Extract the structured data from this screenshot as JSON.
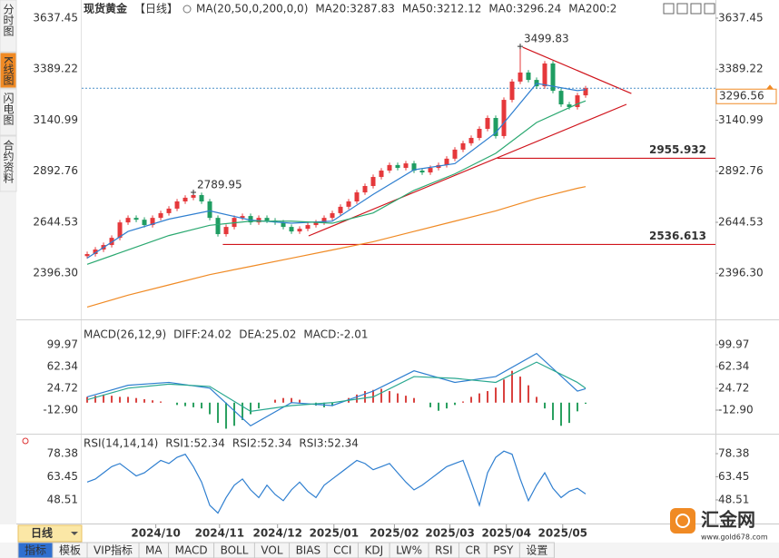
{
  "chart_data": [
    {
      "type": "candlestick",
      "title": "现货黄金",
      "period": "【日线】",
      "indicator": "MA(20,50,0,200,0,0)",
      "up_color": "#e5383b",
      "down_color": "#1f9d62",
      "xlim": [
        -0.67,
        76.89
      ],
      "ylim": [
        2203.2,
        3690.4
      ],
      "yticks": [
        3637.45,
        3389.22,
        3140.99,
        2892.76,
        2644.53,
        {
          "value": 2396.3,
          "label": "2396.30"
        }
      ],
      "open": [
        2480,
        2490,
        2512,
        2534,
        2569,
        2644,
        2666,
        2657,
        2631,
        2666,
        2689,
        2711,
        2746,
        2764,
        2777,
        2746,
        2666,
        2587,
        2622,
        2666,
        2675,
        2644,
        2666,
        2653,
        2644,
        2622,
        2600,
        2613,
        2631,
        2644,
        2666,
        2689,
        2720,
        2746,
        2790,
        2821,
        2865,
        2896,
        2923,
        2909,
        2931,
        2896,
        2887,
        2909,
        2923,
        2954,
        2998,
        3029,
        3055,
        3099,
        3152,
        3064,
        3240,
        3329,
        3373,
        3337,
        3306,
        3417,
        3284,
        3218,
        3205,
        3262
      ],
      "high": [
        2502,
        2524,
        2546,
        2581,
        2656,
        2678,
        2678,
        2669,
        2678,
        2701,
        2723,
        2758,
        2776,
        2789.95,
        2789,
        2758,
        2678,
        2634,
        2678,
        2687,
        2687,
        2678,
        2678,
        2665,
        2656,
        2634,
        2625,
        2643,
        2656,
        2678,
        2701,
        2732,
        2758,
        2802,
        2833,
        2877,
        2908,
        2935,
        2935,
        2943,
        2943,
        2908,
        2921,
        2935,
        2966,
        3010,
        3041,
        3067,
        3111,
        3164,
        3164,
        3252,
        3341,
        3499.83,
        3385,
        3349,
        3429,
        3429,
        3296,
        3230,
        3274,
        3308
      ],
      "low": [
        2468,
        2478,
        2500,
        2522,
        2557,
        2632,
        2645,
        2619,
        2619,
        2654,
        2677,
        2699,
        2734,
        2752,
        2734,
        2654,
        2575,
        2575,
        2610,
        2654,
        2632,
        2632,
        2641,
        2632,
        2610,
        2588,
        2588,
        2601,
        2619,
        2632,
        2654,
        2677,
        2708,
        2734,
        2778,
        2809,
        2853,
        2884,
        2897,
        2897,
        2884,
        2875,
        2875,
        2897,
        2911,
        2942,
        2986,
        3017,
        3043,
        3087,
        3052,
        3052,
        3228,
        3317,
        3325,
        3294,
        3294,
        3272,
        3206,
        3193,
        3193,
        3250
      ],
      "close": [
        2490,
        2512,
        2534,
        2569,
        2644,
        2666,
        2657,
        2631,
        2666,
        2689,
        2711,
        2746,
        2764,
        2777,
        2746,
        2666,
        2587,
        2622,
        2666,
        2675,
        2644,
        2666,
        2653,
        2644,
        2622,
        2600,
        2613,
        2631,
        2644,
        2666,
        2689,
        2720,
        2746,
        2790,
        2821,
        2865,
        2896,
        2923,
        2909,
        2931,
        2896,
        2887,
        2909,
        2923,
        2954,
        2998,
        3029,
        3055,
        3099,
        3152,
        3064,
        3240,
        3329,
        3373,
        3337,
        3306,
        3417,
        3284,
        3218,
        3205,
        3262,
        3296.56
      ],
      "series": [
        {
          "name": "MA20:3287.83",
          "color": "#2f7fd0",
          "x": [
            0,
            5,
            10,
            15,
            20,
            25,
            30,
            35,
            40,
            45,
            50,
            55,
            60,
            61
          ],
          "values": [
            2470,
            2600,
            2660,
            2700,
            2655,
            2640,
            2650,
            2780,
            2900,
            2930,
            3080,
            3320,
            3285,
            3290
          ]
        },
        {
          "name": "MA50:3212.12",
          "color": "#2aa870",
          "x": [
            0,
            5,
            10,
            15,
            20,
            25,
            30,
            35,
            40,
            45,
            50,
            55,
            60,
            61
          ],
          "values": [
            2440,
            2510,
            2580,
            2630,
            2650,
            2650,
            2640,
            2690,
            2800,
            2880,
            2980,
            3130,
            3220,
            3235
          ]
        },
        {
          "name": "MA0:3296.24",
          "color": "#3aa0e0"
        },
        {
          "name": "MA200:2",
          "color": "#f08a24",
          "x": [
            0,
            5,
            10,
            15,
            20,
            25,
            30,
            35,
            40,
            45,
            50,
            55,
            60,
            61
          ],
          "values": [
            2232,
            2290,
            2340,
            2390,
            2430,
            2470,
            2510,
            2550,
            2600,
            2650,
            2700,
            2760,
            2810,
            2818
          ]
        }
      ],
      "high_labels": [
        {
          "x": 53,
          "value": 3499.83
        },
        {
          "x": 13,
          "value": 2789.95
        }
      ],
      "levels": [
        {
          "x_start": 50.2,
          "value": 2955.932
        },
        {
          "x_start": 16.6,
          "value": 2536.613
        }
      ],
      "trendlines": [
        {
          "x": [
            27.1,
            66
          ],
          "y": [
            2578.3,
            3218.2
          ]
        },
        {
          "x": [
            53.3,
            66.6
          ],
          "y": [
            3496,
            3271
          ]
        }
      ],
      "last_price": 3296.56
    },
    {
      "type": "macd",
      "title": "MACD(26,12,9)",
      "xlim": [
        -0.67,
        76.89
      ],
      "ylim": [
        -50.5,
        128.2
      ],
      "yticks": [
        99.97,
        62.34,
        24.72,
        {
          "value": -12.9,
          "label": "-12.90"
        }
      ],
      "series": [
        {
          "name": "DIFF:24.02",
          "color": "#2f7fd0",
          "x": [
            0,
            5,
            10,
            15,
            20,
            25,
            30,
            35,
            40,
            45,
            50,
            55,
            60,
            61
          ],
          "values": [
            10,
            30,
            35,
            25,
            -40,
            0,
            -5,
            20,
            55,
            35,
            45,
            85,
            20,
            24.02
          ]
        },
        {
          "name": "DEA:25.02",
          "color": "#2aa890",
          "x": [
            0,
            5,
            10,
            15,
            20,
            25,
            30,
            35,
            40,
            45,
            50,
            55,
            60,
            61
          ],
          "values": [
            5,
            25,
            32,
            28,
            -15,
            -5,
            0,
            10,
            45,
            42,
            35,
            70,
            35,
            25.02
          ]
        }
      ],
      "histogram": {
        "name": "MACD:-2.01",
        "color": "#3a8fd8",
        "up_color": "#d9423f",
        "down_color": "#2aa060",
        "values": [
          10,
          12,
          14,
          12,
          10,
          10,
          8,
          6,
          4,
          2,
          0,
          -4,
          -6,
          -8,
          -10,
          -20,
          -35,
          -45,
          -40,
          -30,
          -20,
          -10,
          0,
          5,
          8,
          8,
          5,
          0,
          -5,
          -8,
          -6,
          0,
          8,
          14,
          20,
          22,
          24,
          20,
          16,
          12,
          8,
          0,
          -8,
          -14,
          -10,
          -4,
          2,
          10,
          16,
          20,
          26,
          40,
          55,
          45,
          30,
          10,
          -10,
          -30,
          -40,
          -35,
          -15,
          -2.01
        ]
      }
    },
    {
      "type": "line",
      "title": "RSI(14,14,14)",
      "xlim": [
        -0.67,
        76.89
      ],
      "ylim": [
        35,
        87.75
      ],
      "yticks": [
        78.38,
        63.45,
        48.51
      ],
      "xticks": [
        {
          "value": 8.4,
          "label": "2024/10"
        },
        {
          "value": 16.2,
          "label": "2024/11"
        },
        {
          "value": 23.3,
          "label": "2024/12"
        },
        {
          "value": 30.2,
          "label": "2025/01"
        },
        {
          "value": 37.6,
          "label": "2025/02"
        },
        {
          "value": 44.4,
          "label": "2025/03"
        },
        {
          "value": 51.3,
          "label": "2025/04"
        },
        {
          "value": 58.2,
          "label": "2025/05"
        }
      ],
      "series": [
        {
          "name": "RSI1:52.34",
          "color": "#2f7fd0",
          "values": [
            60,
            62,
            66,
            70,
            72,
            68,
            64,
            66,
            70,
            74,
            72,
            76,
            78,
            70,
            60,
            45,
            40,
            50,
            58,
            62,
            55,
            50,
            58,
            52,
            48,
            55,
            60,
            54,
            50,
            58,
            62,
            66,
            70,
            74,
            72,
            68,
            70,
            72,
            66,
            60,
            55,
            58,
            62,
            66,
            70,
            72,
            74,
            60,
            45,
            66,
            76,
            80,
            78,
            62,
            48,
            58,
            66,
            56,
            50,
            54,
            56,
            52.34
          ]
        },
        {
          "name": "RSI2:52.34",
          "color": "#2aa890"
        },
        {
          "name": "RSI3:52.34",
          "color": "#3a8fd8"
        }
      ]
    }
  ],
  "ui": {
    "side_tabs": [
      "分时图",
      "K线图",
      "闪电图",
      "合约资料"
    ],
    "active_tab": 1,
    "period": "日线",
    "toolbar": [
      "指标",
      "模板",
      "VIP指标",
      "MA",
      "MACD",
      "BOLL",
      "VOL",
      "BIAS",
      "CCI",
      "KDJ",
      "LW%",
      "RSI",
      "CR",
      "PSY",
      "设置"
    ],
    "logo": {
      "name": "汇金网",
      "site": "www.gold678.com"
    }
  }
}
